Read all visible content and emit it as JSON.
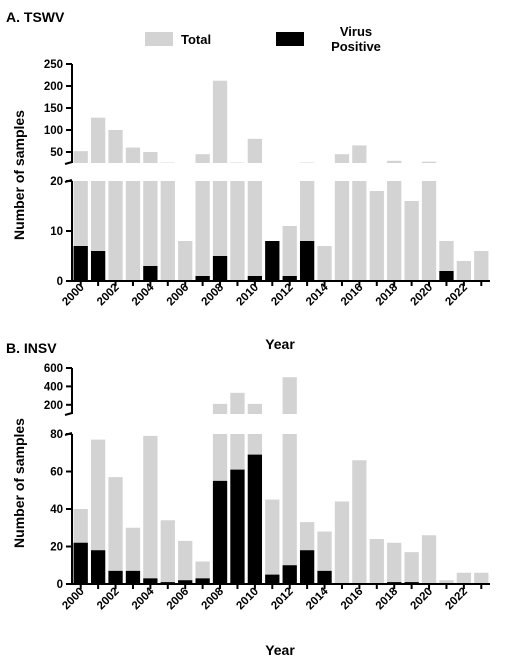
{
  "chart_data": [
    {
      "type": "bar",
      "panel_title": "A. TSWV",
      "categories": [
        "2000",
        "2001",
        "2002",
        "2003",
        "2004",
        "2005",
        "2006",
        "2007",
        "2008",
        "2009",
        "2010",
        "2011",
        "2012",
        "2013",
        "2014",
        "2015",
        "2016",
        "2017",
        "2018",
        "2019",
        "2020",
        "2021",
        "2022",
        "2023"
      ],
      "x_tick_labels": [
        "2000",
        "2002",
        "2004",
        "2006",
        "2008",
        "2010",
        "2012",
        "2014",
        "2016",
        "2018",
        "2020",
        "2022"
      ],
      "xlabel": "Year",
      "ylabel": "Number of samples",
      "axis_break": {
        "lower_range": [
          0,
          20
        ],
        "upper_range": [
          25,
          250
        ]
      },
      "y_ticks_lower": [
        "0",
        "10",
        "20"
      ],
      "y_ticks_upper": [
        "50",
        "100",
        "150",
        "200",
        "250"
      ],
      "legend": {
        "placement": "top"
      },
      "series": [
        {
          "name": "Total",
          "color": "#d3d3d3",
          "values": [
            52,
            128,
            100,
            60,
            50,
            26,
            8,
            45,
            212,
            26,
            80,
            8,
            11,
            26,
            7,
            45,
            65,
            18,
            30,
            16,
            28,
            8,
            4,
            6
          ]
        },
        {
          "name": "Virus Positive",
          "color": "#000000",
          "values": [
            7,
            6,
            0,
            0,
            3,
            0,
            0,
            1,
            5,
            0,
            1,
            8,
            1,
            8,
            0,
            0,
            0,
            0,
            0,
            0,
            0,
            2,
            0,
            0
          ]
        }
      ]
    },
    {
      "type": "bar",
      "panel_title": "B. INSV",
      "categories": [
        "2000",
        "2001",
        "2002",
        "2003",
        "2004",
        "2005",
        "2006",
        "2007",
        "2008",
        "2009",
        "2010",
        "2011",
        "2012",
        "2013",
        "2014",
        "2015",
        "2016",
        "2017",
        "2018",
        "2019",
        "2020",
        "2021",
        "2022",
        "2023"
      ],
      "x_tick_labels": [
        "2000",
        "2002",
        "2004",
        "2006",
        "2008",
        "2010",
        "2012",
        "2014",
        "2016",
        "2018",
        "2020",
        "2022"
      ],
      "xlabel": "Year",
      "ylabel": "Number of samples",
      "axis_break": {
        "lower_range": [
          0,
          80
        ],
        "upper_range": [
          100,
          600
        ]
      },
      "y_ticks_lower": [
        "0",
        "20",
        "40",
        "60",
        "80"
      ],
      "y_ticks_upper": [
        "200",
        "400",
        "600"
      ],
      "series": [
        {
          "name": "Total",
          "color": "#d3d3d3",
          "values": [
            40,
            77,
            57,
            30,
            79,
            34,
            23,
            12,
            210,
            330,
            210,
            45,
            500,
            33,
            28,
            44,
            66,
            24,
            22,
            17,
            26,
            2,
            6,
            6
          ]
        },
        {
          "name": "Virus Positive",
          "color": "#000000",
          "values": [
            22,
            18,
            7,
            7,
            3,
            1,
            2,
            3,
            55,
            61,
            69,
            5,
            10,
            18,
            7,
            0,
            0,
            0,
            1,
            1,
            0,
            0,
            0,
            0
          ]
        }
      ]
    }
  ]
}
